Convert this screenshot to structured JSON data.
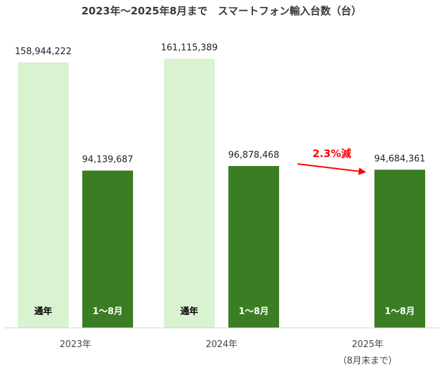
{
  "chart_data": {
    "type": "bar",
    "title": "2023年～2025年8月まで　スマートフォン輸入台数（台）",
    "categories": [
      {
        "label": "2023年",
        "sublabel": ""
      },
      {
        "label": "2024年",
        "sublabel": ""
      },
      {
        "label": "2025年",
        "sublabel": "（8月末まで）"
      }
    ],
    "bars": [
      {
        "category": 0,
        "slot": 0,
        "label": "通年",
        "value": 158944222,
        "value_text": "158,944,222",
        "color": "#d9f2d0",
        "label_color": "#000000"
      },
      {
        "category": 0,
        "slot": 1,
        "label": "1～8月",
        "value": 94139687,
        "value_text": "94,139,687",
        "color": "#3b7d23",
        "label_color": "#ffffff"
      },
      {
        "category": 1,
        "slot": 0,
        "label": "通年",
        "value": 161115389,
        "value_text": "161,115,389",
        "color": "#d9f2d0",
        "label_color": "#000000"
      },
      {
        "category": 1,
        "slot": 1,
        "label": "1～8月",
        "value": 96878468,
        "value_text": "96,878,468",
        "color": "#3b7d23",
        "label_color": "#ffffff"
      },
      {
        "category": 2,
        "slot": 1,
        "label": "1～8月",
        "value": 94684361,
        "value_text": "94,684,361",
        "color": "#3b7d23",
        "label_color": "#ffffff"
      }
    ],
    "ylim": [
      0,
      170000000
    ],
    "grid": false,
    "annotation": {
      "text": "2.3%減",
      "color": "#ff0000",
      "from_bar": 3,
      "to_bar": 4
    }
  }
}
